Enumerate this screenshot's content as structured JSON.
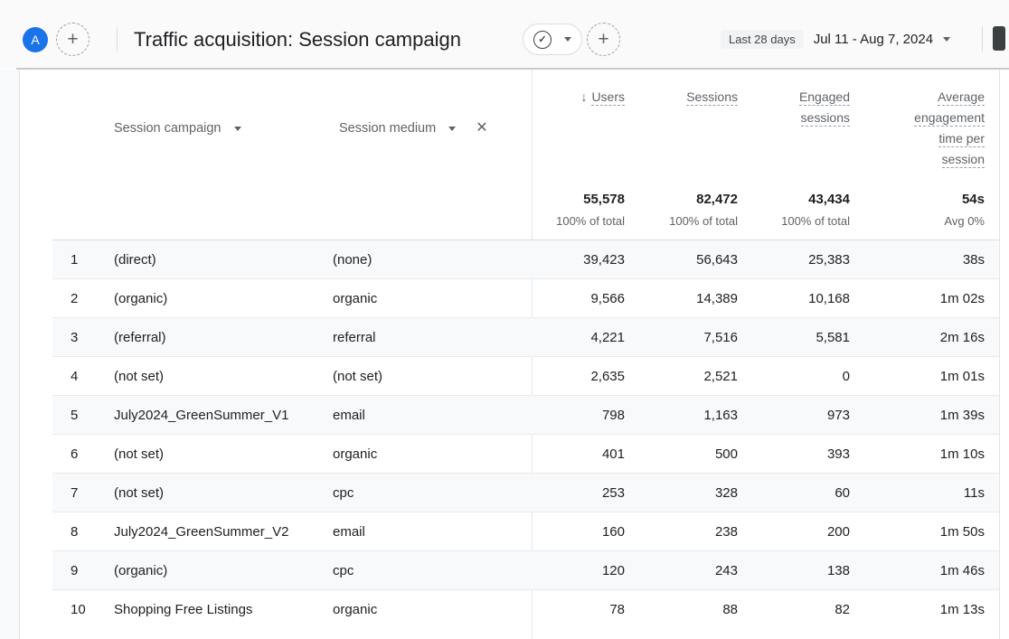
{
  "header": {
    "avatar_letter": "A",
    "title": "Traffic acquisition: Session campaign",
    "date_range_label": "Last 28 days",
    "date_range_value": "Jul 11 - Aug 7, 2024"
  },
  "icons": {
    "add": "+",
    "check": "✓",
    "close": "✕",
    "sort_desc": "↓"
  },
  "colors": {
    "accent_blue": "#1a73e8",
    "text_primary": "#202124",
    "text_secondary": "#5f6368",
    "row_alt_background": "#f8f9fa",
    "row_border": "#e8eaed"
  },
  "table": {
    "dimension_headers": {
      "primary": "Session campaign",
      "secondary": "Session medium"
    },
    "metric_headers": [
      {
        "key": "users",
        "lines": [
          "Users"
        ],
        "sorted_desc": true
      },
      {
        "key": "sessions",
        "lines": [
          "Sessions"
        ],
        "sorted_desc": false
      },
      {
        "key": "engaged-sessions",
        "lines": [
          "Engaged",
          "sessions"
        ],
        "sorted_desc": false
      },
      {
        "key": "avg-engagement-time",
        "lines": [
          "Average",
          "engagement",
          "time per",
          "session"
        ],
        "sorted_desc": false
      }
    ],
    "totals": [
      {
        "value": "55,578",
        "sub": "100% of total"
      },
      {
        "value": "82,472",
        "sub": "100% of total"
      },
      {
        "value": "43,434",
        "sub": "100% of total"
      },
      {
        "value": "54s",
        "sub": "Avg 0%"
      }
    ],
    "rows": [
      {
        "index": "1",
        "campaign": "(direct)",
        "medium": "(none)",
        "users": "39,423",
        "sessions": "56,643",
        "engaged": "25,383",
        "avg_time": "38s"
      },
      {
        "index": "2",
        "campaign": "(organic)",
        "medium": "organic",
        "users": "9,566",
        "sessions": "14,389",
        "engaged": "10,168",
        "avg_time": "1m 02s"
      },
      {
        "index": "3",
        "campaign": "(referral)",
        "medium": "referral",
        "users": "4,221",
        "sessions": "7,516",
        "engaged": "5,581",
        "avg_time": "2m 16s"
      },
      {
        "index": "4",
        "campaign": "(not set)",
        "medium": "(not set)",
        "users": "2,635",
        "sessions": "2,521",
        "engaged": "0",
        "avg_time": "1m 01s"
      },
      {
        "index": "5",
        "campaign": "July2024_GreenSummer_V1",
        "medium": "email",
        "users": "798",
        "sessions": "1,163",
        "engaged": "973",
        "avg_time": "1m 39s"
      },
      {
        "index": "6",
        "campaign": "(not set)",
        "medium": "organic",
        "users": "401",
        "sessions": "500",
        "engaged": "393",
        "avg_time": "1m 10s"
      },
      {
        "index": "7",
        "campaign": "(not set)",
        "medium": "cpc",
        "users": "253",
        "sessions": "328",
        "engaged": "60",
        "avg_time": "11s"
      },
      {
        "index": "8",
        "campaign": "July2024_GreenSummer_V2",
        "medium": "email",
        "users": "160",
        "sessions": "238",
        "engaged": "200",
        "avg_time": "1m 50s"
      },
      {
        "index": "9",
        "campaign": "(organic)",
        "medium": "cpc",
        "users": "120",
        "sessions": "243",
        "engaged": "138",
        "avg_time": "1m 46s"
      },
      {
        "index": "10",
        "campaign": "Shopping Free Listings",
        "medium": "organic",
        "users": "78",
        "sessions": "88",
        "engaged": "82",
        "avg_time": "1m 13s"
      }
    ]
  }
}
